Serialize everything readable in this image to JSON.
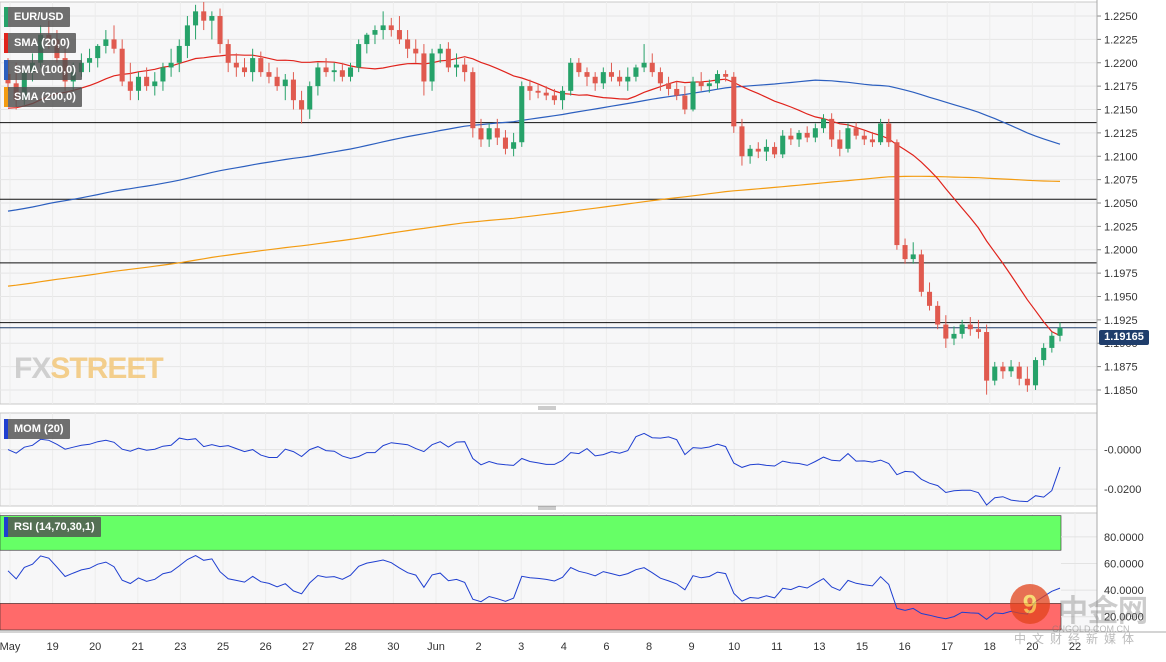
{
  "chart_data": {
    "type": "candlestick",
    "symbol": "EUR/USD",
    "price_axis": {
      "ticks": [
        "1.2250",
        "1.2225",
        "1.2200",
        "1.2175",
        "1.2150",
        "1.2125",
        "1.2100",
        "1.2075",
        "1.2050",
        "1.2025",
        "1.2000",
        "1.1975",
        "1.1950",
        "1.1925",
        "1.1900",
        "1.1875",
        "1.1850"
      ],
      "ylim": [
        1.1835,
        1.2265
      ]
    },
    "x_axis_labels": [
      "May",
      "19",
      "20",
      "21",
      "23",
      "25",
      "26",
      "27",
      "28",
      "30",
      "Jun",
      "2",
      "3",
      "4",
      "6",
      "8",
      "9",
      "10",
      "11",
      "13",
      "15",
      "16",
      "17",
      "18",
      "20",
      "22"
    ],
    "current_price": "1.19165",
    "overlays": [
      {
        "name": "SMA (20,0)",
        "color": "#e0231c"
      },
      {
        "name": "SMA (100,0)",
        "color": "#2c5fbf"
      },
      {
        "name": "SMA (200,0)",
        "color": "#f39c12"
      }
    ],
    "horizontal_levels": [
      1.2136,
      1.2054,
      1.1986,
      1.1922
    ],
    "indicators": [
      {
        "name": "MOM (20)",
        "ticks": [
          "-0.0000",
          "-0.0200"
        ],
        "ylim": [
          -0.0285,
          0.0185
        ]
      },
      {
        "name": "RSI (14,70,30,1)",
        "ticks": [
          "80.0000",
          "60.0000",
          "40.0000",
          "20.0000"
        ],
        "ylim": [
          10,
          98
        ],
        "overbought": 70,
        "oversold": 30
      }
    ],
    "colors": {
      "up": "#26a269",
      "down": "#e05a4f",
      "mom_line": "#1f3fd0",
      "rsi_line": "#1f3fd0",
      "overbought_zone": "#66ff66",
      "oversold_zone": "#ff6a6a"
    },
    "ohlc": [
      [
        1.2188,
        1.2205,
        1.217,
        1.2178
      ],
      [
        1.2178,
        1.22,
        1.215,
        1.216
      ],
      [
        1.216,
        1.2195,
        1.2155,
        1.219
      ],
      [
        1.219,
        1.221,
        1.218,
        1.22
      ],
      [
        1.22,
        1.224,
        1.2195,
        1.223
      ],
      [
        1.223,
        1.2245,
        1.2215,
        1.2225
      ],
      [
        1.2225,
        1.2235,
        1.22,
        1.2205
      ],
      [
        1.2205,
        1.2215,
        1.217,
        1.218
      ],
      [
        1.218,
        1.22,
        1.217,
        1.219
      ],
      [
        1.219,
        1.221,
        1.2185,
        1.22
      ],
      [
        1.22,
        1.2215,
        1.219,
        1.2205
      ],
      [
        1.2205,
        1.222,
        1.2195,
        1.2218
      ],
      [
        1.2218,
        1.2235,
        1.221,
        1.2225
      ],
      [
        1.2225,
        1.224,
        1.221,
        1.2215
      ],
      [
        1.2215,
        1.2225,
        1.2175,
        1.218
      ],
      [
        1.218,
        1.22,
        1.216,
        1.217
      ],
      [
        1.217,
        1.219,
        1.216,
        1.2185
      ],
      [
        1.2185,
        1.2195,
        1.217,
        1.2175
      ],
      [
        1.2175,
        1.219,
        1.2165,
        1.218
      ],
      [
        1.218,
        1.22,
        1.217,
        1.2195
      ],
      [
        1.2195,
        1.2215,
        1.2185,
        1.22
      ],
      [
        1.22,
        1.2225,
        1.219,
        1.2218
      ],
      [
        1.2218,
        1.225,
        1.2205,
        1.224
      ],
      [
        1.224,
        1.2262,
        1.2225,
        1.2255
      ],
      [
        1.2255,
        1.2265,
        1.2235,
        1.2245
      ],
      [
        1.2245,
        1.2255,
        1.2225,
        1.225
      ],
      [
        1.225,
        1.2258,
        1.221,
        1.222
      ],
      [
        1.222,
        1.2225,
        1.219,
        1.22
      ],
      [
        1.22,
        1.221,
        1.2185,
        1.2195
      ],
      [
        1.2195,
        1.2205,
        1.2185,
        1.219
      ],
      [
        1.219,
        1.2215,
        1.218,
        1.2205
      ],
      [
        1.2205,
        1.2212,
        1.2185,
        1.219
      ],
      [
        1.219,
        1.22,
        1.2178,
        1.2185
      ],
      [
        1.2185,
        1.2195,
        1.217,
        1.2175
      ],
      [
        1.2175,
        1.2188,
        1.216,
        1.2182
      ],
      [
        1.2182,
        1.219,
        1.215,
        1.216
      ],
      [
        1.216,
        1.217,
        1.2135,
        1.215
      ],
      [
        1.215,
        1.218,
        1.214,
        1.2175
      ],
      [
        1.2175,
        1.22,
        1.2165,
        1.2195
      ],
      [
        1.2195,
        1.2205,
        1.2185,
        1.219
      ],
      [
        1.219,
        1.22,
        1.218,
        1.2192
      ],
      [
        1.2192,
        1.22,
        1.218,
        1.2185
      ],
      [
        1.2185,
        1.22,
        1.218,
        1.2195
      ],
      [
        1.2195,
        1.2225,
        1.219,
        1.222
      ],
      [
        1.222,
        1.2232,
        1.221,
        1.223
      ],
      [
        1.223,
        1.224,
        1.222,
        1.2235
      ],
      [
        1.2235,
        1.2255,
        1.2225,
        1.224
      ],
      [
        1.224,
        1.2248,
        1.2228,
        1.2235
      ],
      [
        1.2235,
        1.225,
        1.222,
        1.2225
      ],
      [
        1.2225,
        1.2235,
        1.2205,
        1.2215
      ],
      [
        1.2215,
        1.2225,
        1.22,
        1.221
      ],
      [
        1.221,
        1.222,
        1.2165,
        1.218
      ],
      [
        1.218,
        1.2215,
        1.217,
        1.221
      ],
      [
        1.221,
        1.222,
        1.22,
        1.2215
      ],
      [
        1.2215,
        1.2222,
        1.219,
        1.2195
      ],
      [
        1.2195,
        1.221,
        1.2185,
        1.2198
      ],
      [
        1.2198,
        1.2205,
        1.218,
        1.219
      ],
      [
        1.219,
        1.2195,
        1.212,
        1.213
      ],
      [
        1.213,
        1.214,
        1.211,
        1.2118
      ],
      [
        1.2118,
        1.2135,
        1.211,
        1.213
      ],
      [
        1.213,
        1.214,
        1.2112,
        1.212
      ],
      [
        1.212,
        1.2128,
        1.2102,
        1.2108
      ],
      [
        1.2108,
        1.2125,
        1.21,
        1.2115
      ],
      [
        1.2115,
        1.218,
        1.211,
        1.2175
      ],
      [
        1.2175,
        1.2182,
        1.216,
        1.217
      ],
      [
        1.217,
        1.2178,
        1.2162,
        1.2168
      ],
      [
        1.2168,
        1.2175,
        1.216,
        1.2165
      ],
      [
        1.2165,
        1.2172,
        1.2155,
        1.216
      ],
      [
        1.216,
        1.2175,
        1.215,
        1.217
      ],
      [
        1.217,
        1.2205,
        1.2165,
        1.22
      ],
      [
        1.22,
        1.2205,
        1.2185,
        1.219
      ],
      [
        1.219,
        1.2195,
        1.2175,
        1.2185
      ],
      [
        1.2185,
        1.219,
        1.217,
        1.2178
      ],
      [
        1.2178,
        1.2195,
        1.2172,
        1.219
      ],
      [
        1.219,
        1.22,
        1.218,
        1.2185
      ],
      [
        1.2185,
        1.2192,
        1.2175,
        1.218
      ],
      [
        1.218,
        1.2195,
        1.217,
        1.2185
      ],
      [
        1.2185,
        1.2198,
        1.218,
        1.2195
      ],
      [
        1.2195,
        1.222,
        1.219,
        1.22
      ],
      [
        1.22,
        1.221,
        1.2185,
        1.219
      ],
      [
        1.219,
        1.2195,
        1.217,
        1.2178
      ],
      [
        1.2178,
        1.2185,
        1.2165,
        1.2172
      ],
      [
        1.2172,
        1.218,
        1.216,
        1.2165
      ],
      [
        1.2165,
        1.2175,
        1.2145,
        1.215
      ],
      [
        1.215,
        1.2185,
        1.2148,
        1.218
      ],
      [
        1.218,
        1.219,
        1.217,
        1.2175
      ],
      [
        1.2175,
        1.2182,
        1.2168,
        1.2178
      ],
      [
        1.2178,
        1.2192,
        1.2172,
        1.2188
      ],
      [
        1.2188,
        1.2192,
        1.218,
        1.2185
      ],
      [
        1.2185,
        1.219,
        1.2125,
        1.2132
      ],
      [
        1.2132,
        1.214,
        1.209,
        1.21
      ],
      [
        1.21,
        1.2112,
        1.2092,
        1.2108
      ],
      [
        1.2108,
        1.2115,
        1.2098,
        1.2105
      ],
      [
        1.2105,
        1.2118,
        1.2095,
        1.211
      ],
      [
        1.211,
        1.2115,
        1.2098,
        1.2102
      ],
      [
        1.2102,
        1.2128,
        1.2098,
        1.2122
      ],
      [
        1.2122,
        1.213,
        1.2112,
        1.2118
      ],
      [
        1.2118,
        1.2128,
        1.211,
        1.2125
      ],
      [
        1.2125,
        1.2132,
        1.2115,
        1.212
      ],
      [
        1.212,
        1.2135,
        1.2115,
        1.213
      ],
      [
        1.213,
        1.2145,
        1.2125,
        1.214
      ],
      [
        1.214,
        1.2146,
        1.211,
        1.2118
      ],
      [
        1.2118,
        1.2128,
        1.21,
        1.2108
      ],
      [
        1.2108,
        1.2135,
        1.2104,
        1.213
      ],
      [
        1.213,
        1.2136,
        1.2118,
        1.2122
      ],
      [
        1.2122,
        1.2128,
        1.2112,
        1.2118
      ],
      [
        1.2118,
        1.2126,
        1.211,
        1.2115
      ],
      [
        1.2115,
        1.214,
        1.2112,
        1.2135
      ],
      [
        1.2135,
        1.214,
        1.211,
        1.2115
      ],
      [
        1.2115,
        1.2118,
        1.2,
        1.2005
      ],
      [
        1.2005,
        1.2012,
        1.1985,
        1.199
      ],
      [
        1.199,
        1.2008,
        1.1985,
        1.1995
      ],
      [
        1.1995,
        1.2,
        1.195,
        1.1955
      ],
      [
        1.1955,
        1.1965,
        1.1935,
        1.194
      ],
      [
        1.194,
        1.1945,
        1.1915,
        1.192
      ],
      [
        1.192,
        1.193,
        1.1895,
        1.1905
      ],
      [
        1.1905,
        1.1918,
        1.1898,
        1.191
      ],
      [
        1.191,
        1.1925,
        1.1905,
        1.192
      ],
      [
        1.192,
        1.1928,
        1.1908,
        1.1915
      ],
      [
        1.1915,
        1.1925,
        1.1905,
        1.1912
      ],
      [
        1.1912,
        1.192,
        1.1845,
        1.186
      ],
      [
        1.186,
        1.188,
        1.1855,
        1.1875
      ],
      [
        1.1875,
        1.188,
        1.1862,
        1.187
      ],
      [
        1.187,
        1.1882,
        1.1864,
        1.1875
      ],
      [
        1.1875,
        1.188,
        1.1855,
        1.1862
      ],
      [
        1.1862,
        1.1875,
        1.1848,
        1.1855
      ],
      [
        1.1855,
        1.1885,
        1.185,
        1.1882
      ],
      [
        1.1882,
        1.19,
        1.1876,
        1.1895
      ],
      [
        1.1895,
        1.1912,
        1.189,
        1.1908
      ],
      [
        1.1908,
        1.1922,
        1.1902,
        1.19165
      ]
    ]
  }
}
